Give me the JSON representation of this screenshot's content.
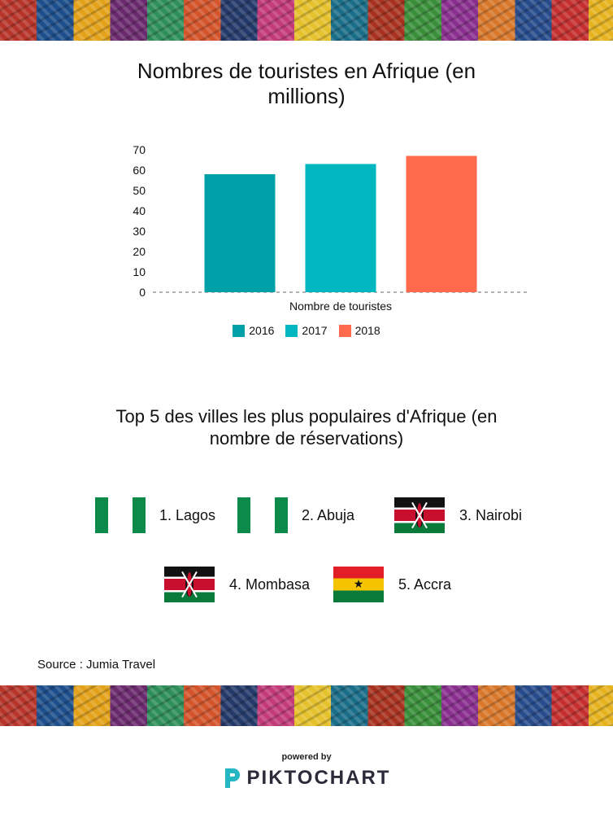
{
  "chart_data": {
    "type": "bar",
    "title": "Nombres de touristes en Afrique (en millions)",
    "categories": [
      "Nombre de touristes"
    ],
    "xlabel": "",
    "ylabel": "",
    "ylim": [
      0,
      70
    ],
    "yticks": [
      0,
      10,
      20,
      30,
      40,
      50,
      60,
      70
    ],
    "series": [
      {
        "name": "2016",
        "values": [
          58
        ],
        "color": "#00A0A8"
      },
      {
        "name": "2017",
        "values": [
          63
        ],
        "color": "#00B6C1"
      },
      {
        "name": "2018",
        "values": [
          67
        ],
        "color": "#FF6A4C"
      }
    ],
    "grid": false,
    "legend_position": "bottom"
  },
  "top_cities": {
    "title": "Top 5 des villes les plus populaires d'Afrique (en nombre de réservations)",
    "cities": [
      {
        "label": "1. Lagos",
        "flag": "nigeria-flag"
      },
      {
        "label": "2. Abuja",
        "flag": "nigeria-flag"
      },
      {
        "label": "3. Nairobi",
        "flag": "kenya-flag"
      },
      {
        "label": "4. Mombasa",
        "flag": "kenya-flag"
      },
      {
        "label": "5. Accra",
        "flag": "ghana-flag"
      }
    ]
  },
  "source": "Source : Jumia Travel",
  "footer": {
    "powered_by": "powered by",
    "brand": "PIKTOCHART",
    "brand_color": "#2b2b3a",
    "brand_icon_color": "#25b8c4"
  }
}
